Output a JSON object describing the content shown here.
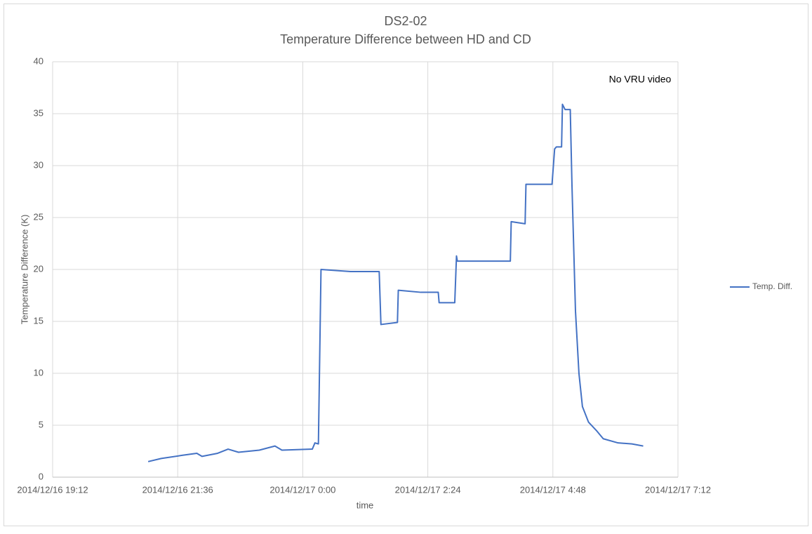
{
  "chart_data": {
    "type": "line",
    "title": "DS2-02",
    "subtitle": "Temperature Difference between HD and CD",
    "xlabel": "time",
    "ylabel": "Temperature Difference (K)",
    "annotation": "No VRU video",
    "legend": "right",
    "grid": true,
    "xlim": [
      "2014/12/16 19:12",
      "2014/12/17 7:12"
    ],
    "xticks": [
      "2014/12/16 19:12",
      "2014/12/16 21:36",
      "2014/12/17 0:00",
      "2014/12/17 2:24",
      "2014/12/17 4:48",
      "2014/12/17 7:12"
    ],
    "ylim": [
      0,
      40
    ],
    "yticks": [
      0,
      5,
      10,
      15,
      20,
      25,
      30,
      35,
      40
    ],
    "x": [
      "2014/12/16 21:02",
      "2014/12/16 21:17",
      "2014/12/16 21:41",
      "2014/12/16 21:58",
      "2014/12/16 22:04",
      "2014/12/16 22:22",
      "2014/12/16 22:34",
      "2014/12/16 22:46",
      "2014/12/16 23:10",
      "2014/12/16 23:28",
      "2014/12/16 23:36",
      "2014/12/17 0:11",
      "2014/12/17 0:14",
      "2014/12/17 0:18",
      "2014/12/17 0:21",
      "2014/12/17 0:55",
      "2014/12/17 1:28",
      "2014/12/17 1:30",
      "2014/12/17 1:49",
      "2014/12/17 1:50",
      "2014/12/17 2:16",
      "2014/12/17 2:36",
      "2014/12/17 2:37",
      "2014/12/17 2:55",
      "2014/12/17 2:57",
      "2014/12/17 2:58",
      "2014/12/17 3:59",
      "2014/12/17 4:00",
      "2014/12/17 4:16",
      "2014/12/17 4:17",
      "2014/12/17 4:47",
      "2014/12/17 4:50",
      "2014/12/17 4:52",
      "2014/12/17 4:58",
      "2014/12/17 4:59",
      "2014/12/17 5:02",
      "2014/12/17 5:08",
      "2014/12/17 5:10",
      "2014/12/17 5:14",
      "2014/12/17 5:18",
      "2014/12/17 5:22",
      "2014/12/17 5:29",
      "2014/12/17 5:38",
      "2014/12/17 5:46",
      "2014/12/17 6:03",
      "2014/12/17 6:19",
      "2014/12/17 6:32"
    ],
    "series": [
      {
        "name": "Temp. Diff.",
        "color": "#4472c4",
        "values": [
          1.5,
          1.8,
          2.1,
          2.3,
          2.0,
          2.3,
          2.7,
          2.4,
          2.6,
          3.0,
          2.6,
          2.7,
          3.3,
          3.2,
          20.0,
          19.8,
          19.8,
          14.7,
          14.9,
          18.0,
          17.8,
          17.8,
          16.8,
          16.8,
          21.3,
          20.8,
          20.8,
          24.6,
          24.4,
          28.2,
          28.2,
          31.6,
          31.8,
          31.8,
          35.9,
          35.4,
          35.4,
          28,
          16,
          10,
          6.8,
          5.3,
          4.5,
          3.7,
          3.3,
          3.2,
          3.0
        ]
      }
    ]
  }
}
